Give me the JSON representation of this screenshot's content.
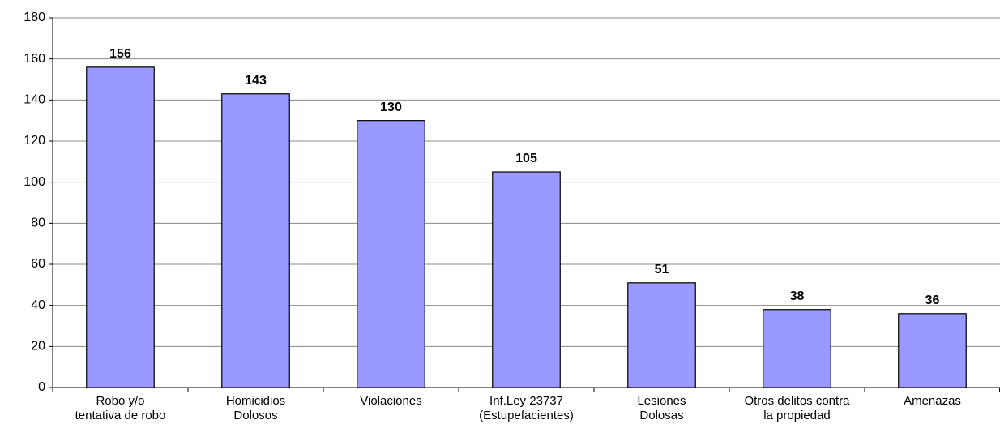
{
  "chart_data": {
    "type": "bar",
    "categories": [
      "Robo y/o\ntentativa de robo",
      "Homicidios\nDolosos",
      "Violaciones",
      "Inf.Ley 23737\n(Estupefacientes)",
      "Lesiones\nDolosas",
      "Otros delitos contra\nla propiedad",
      "Amenazas"
    ],
    "values": [
      156,
      143,
      130,
      105,
      51,
      38,
      36
    ],
    "color": "#9999ff",
    "ylim": [
      0,
      180
    ],
    "yticks": [
      0,
      20,
      40,
      60,
      80,
      100,
      120,
      140,
      160,
      180
    ],
    "grid": true
  }
}
